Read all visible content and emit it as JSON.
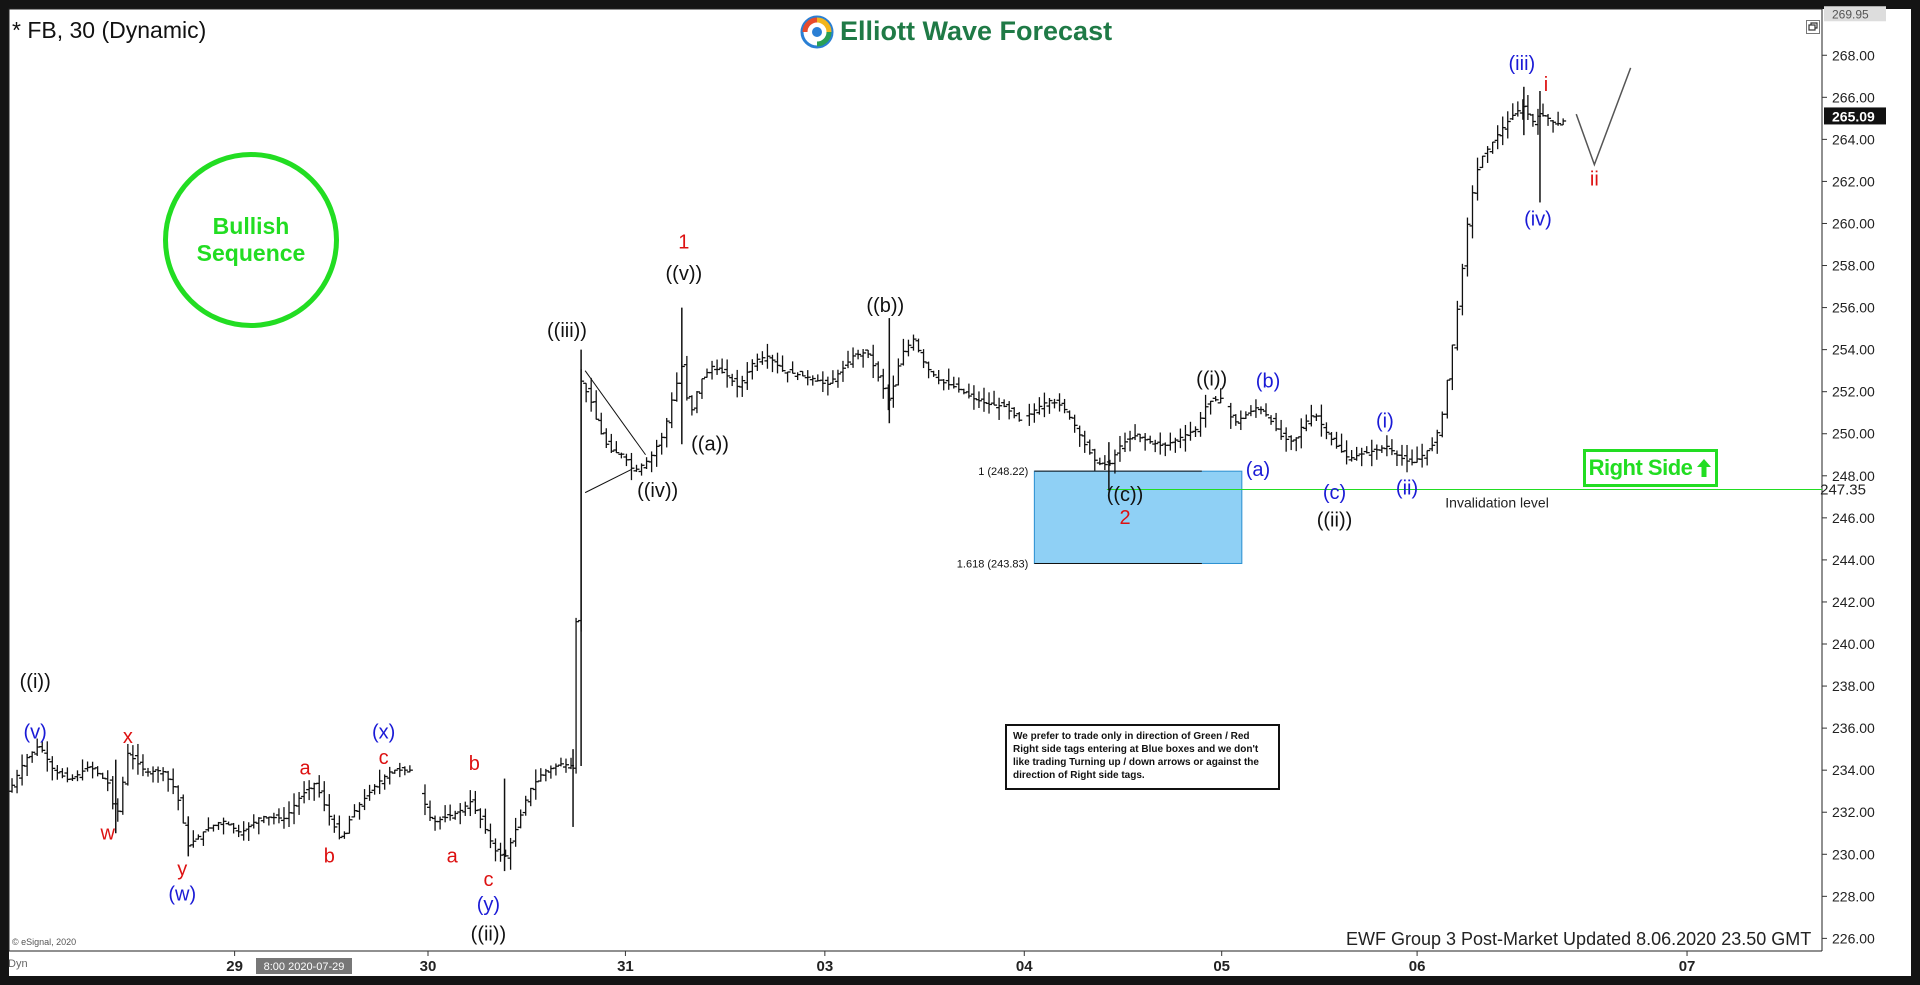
{
  "header": {
    "symbol_title": "* FB, 30 (Dynamic)",
    "brand": "Elliott Wave Forecast"
  },
  "tags": {
    "bullish": [
      "Bullish",
      "Sequence"
    ],
    "right_side": "Right Side"
  },
  "disclaimer": "We prefer to trade only in direction of Green / Red Right side tags entering at Blue boxes and we don't like trading Turning up / down arrows or against the direction of Right side tags.",
  "footer": {
    "update_note": "EWF Group 3 Post-Market Updated 8.06.2020 23.50 GMT",
    "source": "© eSignal, 2020",
    "dyn": "Dyn"
  },
  "colors": {
    "green": "#22dd22",
    "blue_label": "#1a1ad6",
    "red_label": "#dd1111",
    "box_fill": "#8fd0f5",
    "price_bar": "#111111"
  },
  "chart_data": {
    "type": "ohlc",
    "ylim": [
      225.4,
      270.2
    ],
    "y_ticks": [
      226,
      228,
      230,
      232,
      234,
      236,
      238,
      240,
      242,
      244,
      246,
      248,
      250,
      252,
      254,
      256,
      258,
      260,
      262,
      264,
      266,
      268
    ],
    "x_ticks": [
      {
        "label": "29",
        "t": 11.2
      },
      {
        "label": "30",
        "t": 20.8
      },
      {
        "label": "31",
        "t": 30.6
      },
      {
        "label": "03",
        "t": 40.5
      },
      {
        "label": "04",
        "t": 50.4
      },
      {
        "label": "05",
        "t": 60.2
      },
      {
        "label": "06",
        "t": 69.9
      },
      {
        "label": "07",
        "t": 83.3
      }
    ],
    "crosshair_date": "8:00 2020-07-29",
    "last_price": 265.09,
    "top_price": 269.95,
    "invalidation": {
      "value": 247.35,
      "label": "Invalidation level",
      "t_from": 54.5,
      "t_to": 90.0
    },
    "blue_box": {
      "t_from": 50.9,
      "t_to": 61.2,
      "high": 248.22,
      "low": 243.83,
      "labels": [
        "1 (248.22)",
        "1.618 (243.83)"
      ]
    },
    "price_anchors": [
      [
        0,
        233.0
      ],
      [
        0.8,
        234.5
      ],
      [
        1.5,
        235.2
      ],
      [
        2.2,
        234.0
      ],
      [
        3,
        233.5
      ],
      [
        4,
        234.2
      ],
      [
        5,
        233.3
      ],
      [
        5.3,
        231.5
      ],
      [
        5.9,
        234.8
      ],
      [
        6.8,
        233.9
      ],
      [
        7.6,
        234.0
      ],
      [
        8.3,
        233.0
      ],
      [
        8.9,
        230.4
      ],
      [
        9.8,
        231.2
      ],
      [
        10.6,
        231.6
      ],
      [
        11.5,
        231.0
      ],
      [
        12.5,
        231.8
      ],
      [
        13.7,
        231.7
      ],
      [
        14.5,
        232.8
      ],
      [
        15.2,
        233.4
      ],
      [
        15.8,
        232.0
      ],
      [
        16.5,
        230.6
      ],
      [
        17.0,
        231.9
      ],
      [
        17.6,
        232.6
      ],
      [
        18.3,
        233.4
      ],
      [
        19.0,
        234.0
      ],
      [
        20.0,
        234.0
      ],
      [
        21.0,
        231.5
      ],
      [
        22.3,
        232.0
      ],
      [
        22.9,
        232.5
      ],
      [
        23.5,
        231.5
      ],
      [
        24.1,
        230.2
      ],
      [
        24.6,
        229.8
      ],
      [
        25.2,
        231.3
      ],
      [
        25.8,
        233.0
      ],
      [
        26.5,
        233.9
      ],
      [
        27.4,
        234.3
      ],
      [
        28.0,
        234.2
      ],
      [
        28.4,
        252.5
      ],
      [
        28.9,
        251.5
      ],
      [
        29.3,
        250.2
      ],
      [
        29.8,
        249.2
      ],
      [
        30.5,
        249.0
      ],
      [
        31.0,
        248.2
      ],
      [
        31.8,
        248.8
      ],
      [
        32.5,
        250.0
      ],
      [
        32.9,
        251.6
      ],
      [
        33.4,
        253.2
      ],
      [
        33.8,
        250.8
      ],
      [
        34.3,
        252.5
      ],
      [
        34.9,
        253.2
      ],
      [
        35.6,
        252.8
      ],
      [
        36.2,
        252.2
      ],
      [
        37.0,
        253.5
      ],
      [
        37.7,
        253.7
      ],
      [
        38.4,
        253.0
      ],
      [
        39.2,
        252.8
      ],
      [
        40.0,
        252.6
      ],
      [
        40.6,
        252.3
      ],
      [
        41.3,
        253.0
      ],
      [
        41.9,
        253.7
      ],
      [
        42.6,
        253.9
      ],
      [
        43.1,
        252.8
      ],
      [
        43.7,
        251.5
      ],
      [
        44.3,
        253.8
      ],
      [
        44.9,
        254.5
      ],
      [
        45.5,
        253.2
      ],
      [
        46.2,
        252.5
      ],
      [
        47.0,
        252.2
      ],
      [
        47.8,
        251.7
      ],
      [
        48.6,
        251.4
      ],
      [
        49.4,
        251.3
      ],
      [
        50.2,
        250.6
      ],
      [
        51.0,
        251.2
      ],
      [
        51.6,
        251.6
      ],
      [
        52.3,
        251.3
      ],
      [
        52.9,
        250.4
      ],
      [
        53.5,
        249.3
      ],
      [
        54.0,
        248.6
      ],
      [
        54.6,
        248.5
      ],
      [
        55.2,
        249.5
      ],
      [
        55.9,
        249.9
      ],
      [
        56.7,
        249.6
      ],
      [
        57.3,
        249.4
      ],
      [
        58.1,
        249.8
      ],
      [
        58.9,
        250.2
      ],
      [
        59.5,
        251.5
      ],
      [
        60.2,
        251.7
      ],
      [
        60.8,
        250.5
      ],
      [
        61.4,
        250.9
      ],
      [
        62.0,
        251.3
      ],
      [
        62.5,
        250.8
      ],
      [
        63.2,
        249.8
      ],
      [
        63.8,
        249.6
      ],
      [
        64.2,
        250.4
      ],
      [
        64.8,
        251.0
      ],
      [
        65.3,
        250.2
      ],
      [
        65.9,
        249.4
      ],
      [
        66.5,
        248.8
      ],
      [
        67.0,
        249.0
      ],
      [
        67.8,
        249.2
      ],
      [
        68.4,
        249.4
      ],
      [
        69.0,
        248.9
      ],
      [
        69.6,
        248.6
      ],
      [
        70.2,
        249.0
      ],
      [
        70.7,
        249.5
      ],
      [
        71.1,
        250.6
      ],
      [
        71.5,
        253.2
      ],
      [
        72.0,
        256.6
      ],
      [
        72.5,
        260.8
      ],
      [
        73.0,
        263.0
      ],
      [
        73.6,
        263.8
      ],
      [
        74.1,
        264.5
      ],
      [
        74.7,
        265.2
      ],
      [
        75.2,
        265.6
      ],
      [
        75.6,
        264.8
      ],
      [
        76.0,
        265.2
      ],
      [
        76.4,
        265.0
      ],
      [
        76.8,
        264.7
      ],
      [
        77.2,
        264.9
      ]
    ],
    "spikes": [
      {
        "t": 5.3,
        "hi": 234.5,
        "lo": 231.0
      },
      {
        "t": 8.9,
        "hi": 231.8,
        "lo": 229.9
      },
      {
        "t": 24.6,
        "hi": 233.6,
        "lo": 229.2
      },
      {
        "t": 28.0,
        "hi": 235.0,
        "lo": 231.3
      },
      {
        "t": 28.4,
        "hi": 254.0,
        "lo": 234.2
      },
      {
        "t": 33.4,
        "hi": 256.0,
        "lo": 249.5
      },
      {
        "t": 43.7,
        "hi": 255.5,
        "lo": 250.5
      },
      {
        "t": 54.6,
        "hi": 249.6,
        "lo": 247.3
      },
      {
        "t": 76.0,
        "hi": 266.3,
        "lo": 261.0
      },
      {
        "t": 75.2,
        "hi": 266.5,
        "lo": 264.2
      }
    ],
    "projection": [
      [
        77.8,
        265.2
      ],
      [
        78.7,
        262.8
      ],
      [
        80.5,
        267.4
      ]
    ],
    "triangle": [
      [
        28.6,
        253.0
      ],
      [
        31.6,
        249.0
      ],
      [
        28.6,
        247.2
      ],
      [
        30.9,
        248.3
      ]
    ],
    "wave_labels": [
      {
        "text": "((i))",
        "t": 1.3,
        "v": 237.9,
        "color": "black"
      },
      {
        "text": "(v)",
        "t": 1.3,
        "v": 235.5,
        "color": "blue"
      },
      {
        "text": "x",
        "t": 5.9,
        "v": 235.3,
        "color": "red"
      },
      {
        "text": "w",
        "t": 4.9,
        "v": 230.7,
        "color": "red"
      },
      {
        "text": "y",
        "t": 8.6,
        "v": 229.0,
        "color": "red"
      },
      {
        "text": "(w)",
        "t": 8.6,
        "v": 227.8,
        "color": "blue"
      },
      {
        "text": "a",
        "t": 14.7,
        "v": 233.8,
        "color": "red"
      },
      {
        "text": "b",
        "t": 15.9,
        "v": 229.6,
        "color": "red"
      },
      {
        "text": "(x)",
        "t": 18.6,
        "v": 235.5,
        "color": "blue"
      },
      {
        "text": "c",
        "t": 18.6,
        "v": 234.3,
        "color": "red"
      },
      {
        "text": "b",
        "t": 23.1,
        "v": 234.0,
        "color": "red"
      },
      {
        "text": "a",
        "t": 22.0,
        "v": 229.6,
        "color": "red"
      },
      {
        "text": "c",
        "t": 23.8,
        "v": 228.5,
        "color": "red"
      },
      {
        "text": "(y)",
        "t": 23.8,
        "v": 227.3,
        "color": "blue"
      },
      {
        "text": "((ii))",
        "t": 23.8,
        "v": 225.9,
        "color": "black"
      },
      {
        "text": "((iii))",
        "t": 27.7,
        "v": 254.6,
        "color": "black"
      },
      {
        "text": "((iv))",
        "t": 32.2,
        "v": 247.0,
        "color": "black"
      },
      {
        "text": "1",
        "t": 33.5,
        "v": 258.8,
        "color": "red"
      },
      {
        "text": "((v))",
        "t": 33.5,
        "v": 257.3,
        "color": "black"
      },
      {
        "text": "((a))",
        "t": 34.8,
        "v": 249.2,
        "color": "black"
      },
      {
        "text": "((b))",
        "t": 43.5,
        "v": 255.8,
        "color": "black"
      },
      {
        "text": "((c))",
        "t": 55.4,
        "v": 246.8,
        "color": "black"
      },
      {
        "text": "2",
        "t": 55.4,
        "v": 245.7,
        "color": "red"
      },
      {
        "text": "((i))",
        "t": 59.7,
        "v": 252.3,
        "color": "black"
      },
      {
        "text": "(b)",
        "t": 62.5,
        "v": 252.2,
        "color": "blue"
      },
      {
        "text": "(a)",
        "t": 62.0,
        "v": 248.0,
        "color": "blue"
      },
      {
        "text": "(c)",
        "t": 65.8,
        "v": 246.9,
        "color": "blue"
      },
      {
        "text": "((ii))",
        "t": 65.8,
        "v": 245.6,
        "color": "black"
      },
      {
        "text": "(i)",
        "t": 68.3,
        "v": 250.3,
        "color": "blue"
      },
      {
        "text": "(ii)",
        "t": 69.4,
        "v": 247.1,
        "color": "blue"
      },
      {
        "text": "(iii)",
        "t": 75.1,
        "v": 267.3,
        "color": "blue"
      },
      {
        "text": "i",
        "t": 76.3,
        "v": 266.3,
        "color": "red"
      },
      {
        "text": "(iv)",
        "t": 75.9,
        "v": 259.9,
        "color": "blue"
      },
      {
        "text": "ii",
        "t": 78.7,
        "v": 261.8,
        "color": "red"
      }
    ]
  }
}
